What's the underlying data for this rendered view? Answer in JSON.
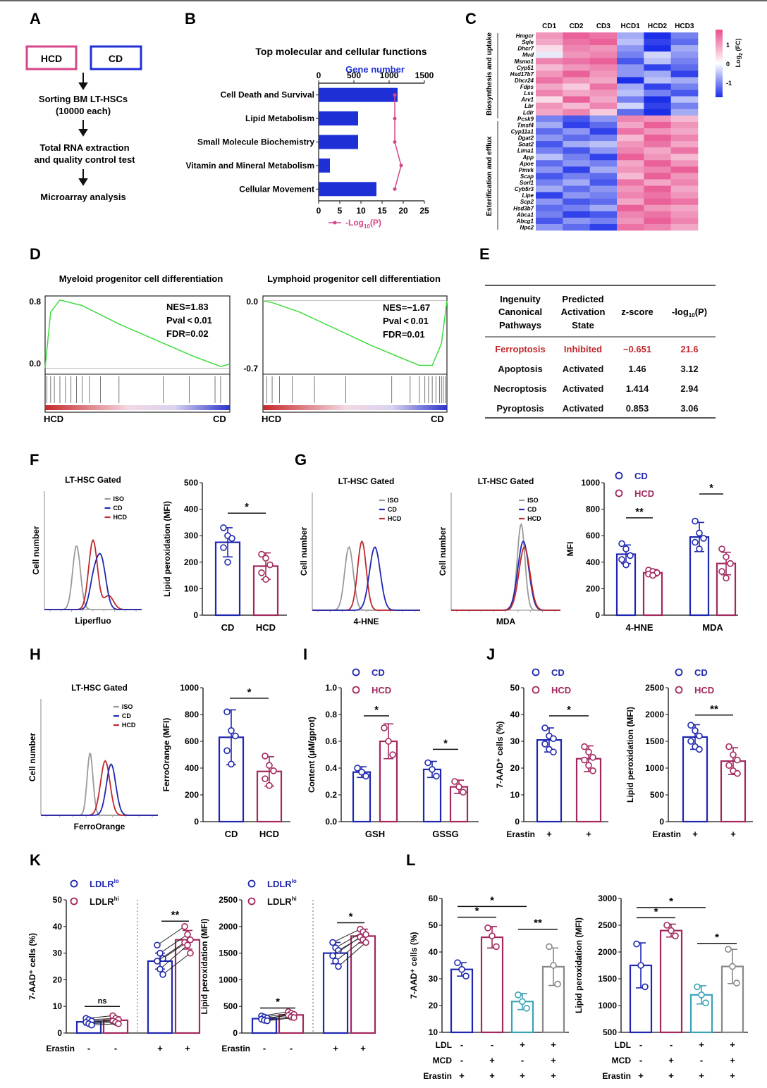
{
  "colors": {
    "cd": "#1f27b0",
    "hcd": "#a3285e",
    "iso": "#9a9a9a",
    "bar_blue": "#1f2fd6",
    "pink": "#d6458a",
    "gsea": "#3edb3e",
    "ferroptosis_red": "#c0282d",
    "teal": "#3aa3b7",
    "gray_bar": "#888888"
  },
  "panelA": {
    "letter": "A",
    "box_hcd": "HCD",
    "box_cd": "CD",
    "step1_line1": "Sorting BM LT-HSCs",
    "step1_line2": "(10000 each)",
    "step2_line1": "Total RNA extraction",
    "step2_line2": "and quality control test",
    "step3": "Microarray analysis"
  },
  "panelB": {
    "letter": "B",
    "title": "Top molecular and cellular functions",
    "top_axis_label": "Gene number",
    "legend_label": "-Log",
    "legend_sub": "10",
    "legend_tail": "(P)"
  },
  "panelC": {
    "letter": "C",
    "colorbar_label": "Log",
    "colorbar_sub": "2",
    "colorbar_tail": " (FC)",
    "colorbar_ticks": [
      "1",
      "0",
      "-1"
    ],
    "group1": "Biosynthesis and uptake",
    "group2": "Esterification and efflux"
  },
  "panelD": {
    "letter": "D",
    "left": {
      "title": "Myeloid progenitor cell differentiation",
      "nes": "NES=1.83",
      "pval": "Pval < 0.01",
      "fdr": "FDR=0.02",
      "y_top": "0.8",
      "y_zero": "0.0",
      "x_left": "HCD",
      "x_right": "CD"
    },
    "right": {
      "title": "Lymphoid progenitor cell differentiation",
      "nes": "NES=−1.67",
      "pval": "Pval < 0.01",
      "fdr": "FDR=0.01",
      "y_top": "0.0",
      "y_bottom": "-0.7",
      "x_left": "HCD",
      "x_right": "CD"
    }
  },
  "panelE": {
    "letter": "E",
    "headers": [
      [
        "Ingenuity",
        "Canonical",
        "Pathways"
      ],
      [
        "Predicted",
        "Activation",
        "State"
      ],
      [
        "z-score"
      ],
      [
        "-log",
        "10",
        "(P)"
      ]
    ],
    "rows": [
      {
        "pathway": "Ferroptosis",
        "state": "Inhibited",
        "z": "−0.651",
        "p": "21.6",
        "highlight": true
      },
      {
        "pathway": "Apoptosis",
        "state": "Activated",
        "z": "1.46",
        "p": "3.12",
        "highlight": false
      },
      {
        "pathway": "Necroptosis",
        "state": "Activated",
        "z": "1.414",
        "p": "2.94",
        "highlight": false
      },
      {
        "pathway": "Pyroptosis",
        "state": "Activated",
        "z": "0.853",
        "p": "3.06",
        "highlight": false
      }
    ]
  },
  "flow": {
    "lt_gated": "LT-HSC Gated",
    "cell_number": "Cell number",
    "legend": [
      "ISO",
      "CD",
      "HCD"
    ]
  },
  "panelF": {
    "letter": "F",
    "x_hist": "Liperfluo",
    "ylabel": "Lipid peroxidation (MFI)"
  },
  "panelG": {
    "letter": "G",
    "x_hist1": "4-HNE",
    "x_hist2": "MDA",
    "ylabel": "MFI"
  },
  "panelH": {
    "letter": "H",
    "x_hist": "FerroOrange",
    "ylabel": "FerroOrange (MFI)"
  },
  "panelI": {
    "letter": "I",
    "ylabel": "Content (μM/gprot)"
  },
  "panelJ": {
    "letter": "J",
    "ylabel1": "7-AAD⁺ cells (%)",
    "ylabel2": "Lipid peroxidation (MFI)"
  },
  "panelK": {
    "letter": "K",
    "ylabel1": "7-AAD⁺ cells (%)",
    "ylabel2": "Lipid peroxidation (MFI)"
  },
  "panelL": {
    "letter": "L",
    "ylabel1": "7-AAD⁺ cells (%)",
    "ylabel2": "Lipid peroxidation (MFI)"
  },
  "legend_labels": {
    "cd": "CD",
    "hcd": "HCD",
    "ldlr_lo": "LDLR",
    "lo_sup": "lo",
    "ldlr_hi": "LDLR",
    "hi_sup": "hi"
  },
  "cond_labels": {
    "erastin": "Erastin",
    "ldl": "LDL",
    "mcd": "MCD",
    "plus": "+",
    "minus": "-"
  },
  "chart_data": [
    {
      "type": "bar",
      "panel": "B",
      "title": "Top molecular and cellular functions",
      "categories": [
        "Cell Death and Survival",
        "Lipid Metabolism",
        "Small Molecule Biochemistry",
        "Vitamin and Mineral Metabolism",
        "Cellular Movement"
      ],
      "series": [
        {
          "name": "Gene number",
          "values": [
            1120,
            560,
            560,
            160,
            820
          ]
        },
        {
          "name": "-Log10(P)",
          "values": [
            18,
            18,
            18,
            19.5,
            18
          ]
        }
      ],
      "top_axis": {
        "ticks": [
          0,
          500,
          1000,
          1500
        ],
        "lim": [
          0,
          1500
        ]
      },
      "bottom_axis": {
        "ticks": [
          0,
          5,
          10,
          15,
          20,
          25
        ],
        "lim": [
          0,
          25
        ]
      }
    },
    {
      "type": "heatmap",
      "panel": "C",
      "columns": [
        "CD1",
        "CD2",
        "CD3",
        "HCD1",
        "HCD2",
        "HCD3"
      ],
      "rows": [
        "Hmgcr",
        "Sqle",
        "Dhcr7",
        "Mvd",
        "Msmo1",
        "Cyp51",
        "Hsd17b7",
        "Dhcr24",
        "Fdps",
        "Lss",
        "Arv1",
        "Lbr",
        "Ldlr",
        "Pcsk9",
        "Tmsf4",
        "Cyp11a1",
        "Dgat2",
        "Soat2",
        "Lima1",
        "App",
        "Apoe",
        "Pmvk",
        "Scap",
        "Sorl1",
        "Cyb5r3",
        "Lipe",
        "Scp2",
        "Hsd3b7",
        "Abca1",
        "Abcg1",
        "Npc2"
      ],
      "values": [
        [
          0.6,
          0.9,
          0.8,
          -0.4,
          -1.0,
          -0.6
        ],
        [
          0.5,
          0.8,
          0.9,
          -0.3,
          -0.9,
          -0.7
        ],
        [
          0.2,
          0.7,
          0.6,
          -0.5,
          -1.0,
          -0.4
        ],
        [
          -0.1,
          0.6,
          0.7,
          -0.6,
          -0.2,
          -0.5
        ],
        [
          0.7,
          0.8,
          0.9,
          -0.8,
          -0.3,
          -0.6
        ],
        [
          0.4,
          0.6,
          0.7,
          -0.5,
          -0.9,
          -0.7
        ],
        [
          0.6,
          0.9,
          0.6,
          -0.5,
          -0.4,
          -0.9
        ],
        [
          0.8,
          0.6,
          0.5,
          -1.0,
          -0.3,
          -0.4
        ],
        [
          0.5,
          0.3,
          0.8,
          -0.4,
          -0.9,
          -0.6
        ],
        [
          0.7,
          0.5,
          0.6,
          -0.3,
          -0.6,
          -0.8
        ],
        [
          0.2,
          0.9,
          0.5,
          -0.6,
          -1.0,
          -0.3
        ],
        [
          0.6,
          0.4,
          0.7,
          -0.2,
          -0.9,
          -0.6
        ],
        [
          0.5,
          0.7,
          0.3,
          -0.7,
          -1.0,
          -0.4
        ],
        [
          -0.6,
          -0.8,
          -0.5,
          0.7,
          0.6,
          0.4
        ],
        [
          -0.4,
          -0.9,
          -0.7,
          0.5,
          0.9,
          0.6
        ],
        [
          -0.7,
          -0.5,
          -0.9,
          0.8,
          0.6,
          0.5
        ],
        [
          -0.5,
          -0.7,
          -0.6,
          0.4,
          0.9,
          0.7
        ],
        [
          -0.8,
          -0.4,
          -0.3,
          0.6,
          0.8,
          0.5
        ],
        [
          -0.6,
          -0.8,
          -0.5,
          0.7,
          0.5,
          0.8
        ],
        [
          -0.3,
          -0.6,
          -0.9,
          0.9,
          0.6,
          0.4
        ],
        [
          -0.7,
          -0.5,
          -0.6,
          0.5,
          0.9,
          0.6
        ],
        [
          -0.5,
          -0.9,
          -0.4,
          0.6,
          0.7,
          0.9
        ],
        [
          -0.8,
          -0.6,
          -0.7,
          0.4,
          0.9,
          0.6
        ],
        [
          -0.6,
          -0.4,
          -0.8,
          0.8,
          0.5,
          0.7
        ],
        [
          -0.4,
          -0.7,
          -0.5,
          0.6,
          0.9,
          0.5
        ],
        [
          -0.9,
          -0.5,
          -0.6,
          0.7,
          0.8,
          0.6
        ],
        [
          -0.5,
          -0.8,
          -0.7,
          0.5,
          0.9,
          0.8
        ],
        [
          -0.7,
          -0.6,
          -0.4,
          0.9,
          0.6,
          0.5
        ],
        [
          -0.6,
          -0.9,
          -0.8,
          0.7,
          0.8,
          0.6
        ],
        [
          -0.8,
          -0.5,
          -0.6,
          0.6,
          0.9,
          0.7
        ],
        [
          -0.5,
          -0.7,
          -0.9,
          0.8,
          0.7,
          0.5
        ]
      ],
      "range": [
        -1,
        1
      ]
    },
    {
      "type": "line",
      "panel": "D-left",
      "title": "Myeloid progenitor cell differentiation",
      "x": [
        0,
        3,
        8,
        20,
        40,
        60,
        80,
        95,
        100
      ],
      "y": [
        0.0,
        0.7,
        0.85,
        0.78,
        0.55,
        0.35,
        0.15,
        0.02,
        0.05
      ],
      "ylim": [
        -0.05,
        0.9
      ]
    },
    {
      "type": "line",
      "panel": "D-right",
      "title": "Lymphoid progenitor cell differentiation",
      "x": [
        0,
        5,
        20,
        40,
        60,
        75,
        85,
        92,
        97,
        100
      ],
      "y": [
        0.0,
        -0.02,
        -0.12,
        -0.3,
        -0.48,
        -0.6,
        -0.68,
        -0.68,
        -0.45,
        0.0
      ],
      "ylim": [
        -0.75,
        0.05
      ]
    },
    {
      "type": "bar",
      "panel": "F",
      "categories": [
        "CD",
        "HCD"
      ],
      "values": [
        275,
        185
      ],
      "errors": [
        55,
        50
      ],
      "points": [
        [
          330,
          300,
          290,
          255,
          200
        ],
        [
          230,
          215,
          190,
          160,
          135
        ]
      ],
      "ylim": [
        0,
        500
      ],
      "yticks": [
        0,
        100,
        200,
        300,
        400,
        500
      ],
      "ylabel": "Lipid peroxidation (MFI)",
      "sig": [
        {
          "from": 0,
          "to": 1,
          "label": "*"
        }
      ]
    },
    {
      "type": "bar",
      "panel": "G",
      "groups": [
        "4-HNE",
        "MDA"
      ],
      "series": [
        {
          "name": "CD",
          "values": [
            460,
            590
          ],
          "errors": [
            70,
            110
          ],
          "points": [
            [
              540,
              500,
              450,
              420,
              380
            ],
            [
              710,
              620,
              580,
              550,
              500
            ]
          ]
        },
        {
          "name": "HCD",
          "values": [
            320,
            390
          ],
          "errors": [
            25,
            85
          ],
          "points": [
            [
              340,
              330,
              320,
              310,
              300
            ],
            [
              500,
              440,
              390,
              330,
              280
            ]
          ]
        }
      ],
      "ylim": [
        0,
        1000
      ],
      "yticks": [
        0,
        200,
        400,
        600,
        800,
        1000
      ],
      "ylabel": "MFI",
      "sig": [
        "**",
        "*"
      ]
    },
    {
      "type": "bar",
      "panel": "H",
      "categories": [
        "CD",
        "HCD"
      ],
      "values": [
        630,
        375
      ],
      "errors": [
        205,
        110
      ],
      "points": [
        [
          820,
          680,
          640,
          530,
          430
        ],
        [
          490,
          420,
          380,
          320,
          270
        ]
      ],
      "ylim": [
        0,
        1000
      ],
      "yticks": [
        0,
        200,
        400,
        600,
        800,
        1000
      ],
      "ylabel": "FerroOrange (MFI)",
      "sig": [
        {
          "from": 0,
          "to": 1,
          "label": "*"
        }
      ]
    },
    {
      "type": "bar",
      "panel": "I",
      "groups": [
        "GSH",
        "GSSG"
      ],
      "series": [
        {
          "name": "CD",
          "values": [
            0.37,
            0.39
          ],
          "errors": [
            0.04,
            0.06
          ],
          "points": [
            [
              0.4,
              0.37,
              0.34
            ],
            [
              0.44,
              0.39,
              0.34
            ]
          ]
        },
        {
          "name": "HCD",
          "values": [
            0.6,
            0.26
          ],
          "errors": [
            0.13,
            0.05
          ],
          "points": [
            [
              0.7,
              0.6,
              0.5
            ],
            [
              0.3,
              0.26,
              0.22
            ]
          ]
        }
      ],
      "ylim": [
        0,
        1.0
      ],
      "yticks": [
        0.0,
        0.2,
        0.4,
        0.6,
        0.8,
        1.0
      ],
      "ylabel": "Content (μM/gprot)",
      "sig": [
        "*",
        "*"
      ]
    },
    {
      "type": "bar",
      "panel": "J-left",
      "categories": [
        "CD",
        "HCD"
      ],
      "values": [
        30.5,
        23.5
      ],
      "errors": [
        4.5,
        4.8
      ],
      "points": [
        [
          35,
          32,
          31,
          29,
          27,
          26
        ],
        [
          28,
          26,
          24,
          23,
          21,
          19
        ]
      ],
      "ylim": [
        0,
        50
      ],
      "yticks": [
        0,
        10,
        20,
        30,
        40,
        50
      ],
      "ylabel": "7-AAD⁺ cells (%)",
      "sig": [
        {
          "from": 0,
          "to": 1,
          "label": "*"
        }
      ]
    },
    {
      "type": "bar",
      "panel": "J-right",
      "categories": [
        "CD",
        "HCD"
      ],
      "values": [
        1580,
        1130
      ],
      "errors": [
        230,
        250
      ],
      "points": [
        [
          1800,
          1700,
          1600,
          1500,
          1400,
          1350
        ],
        [
          1400,
          1250,
          1150,
          1050,
          950,
          900
        ]
      ],
      "ylim": [
        0,
        2500
      ],
      "yticks": [
        0,
        500,
        1000,
        1500,
        2000,
        2500
      ],
      "ylabel": "Lipid peroxidation (MFI)",
      "sig": [
        {
          "from": 0,
          "to": 1,
          "label": "**"
        }
      ]
    },
    {
      "type": "bar",
      "panel": "K-left",
      "categories": [
        "LDLRlo",
        "LDLRhi",
        "LDLRlo",
        "LDLRhi"
      ],
      "values": [
        4.2,
        4.8,
        27,
        35
      ],
      "errors": [
        1.2,
        1.3,
        3.0,
        3.5
      ],
      "points": [
        [
          5.5,
          5,
          4.5,
          4,
          3.5,
          3
        ],
        [
          6.5,
          5.5,
          5,
          4.5,
          4,
          3.5
        ],
        [
          33,
          30,
          28,
          27,
          24,
          22
        ],
        [
          40,
          37,
          35,
          34,
          33,
          30
        ]
      ],
      "ylim": [
        0,
        50
      ],
      "yticks": [
        0,
        10,
        20,
        30,
        40,
        50
      ],
      "ylabel": "7-AAD⁺ cells (%)",
      "sig": [
        "ns",
        "**"
      ]
    },
    {
      "type": "bar",
      "panel": "K-right",
      "categories": [
        "LDLRlo",
        "LDLRhi",
        "LDLRlo",
        "LDLRhi"
      ],
      "values": [
        270,
        340,
        1500,
        1820
      ],
      "errors": [
        40,
        50,
        200,
        130
      ],
      "points": [
        [
          320,
          300,
          280,
          260,
          240,
          230
        ],
        [
          400,
          370,
          350,
          330,
          300,
          290
        ],
        [
          1700,
          1600,
          1550,
          1450,
          1350,
          1250
        ],
        [
          1950,
          1900,
          1850,
          1800,
          1750,
          1700
        ]
      ],
      "ylim": [
        0,
        2500
      ],
      "yticks": [
        0,
        500,
        1000,
        1500,
        2000,
        2500
      ],
      "ylabel": "Lipid peroxidation (MFI)",
      "sig": [
        "*",
        "*"
      ]
    },
    {
      "type": "bar",
      "panel": "L-left",
      "categories": [
        "-/-/+",
        "-/+/+",
        "+/-/+",
        "+/+/+"
      ],
      "values": [
        33.5,
        45.5,
        21.5,
        34.5
      ],
      "errors": [
        2.5,
        4,
        3,
        7
      ],
      "points": [
        [
          36,
          33.5,
          31
        ],
        [
          49,
          46,
          42
        ],
        [
          24,
          21.5,
          19
        ],
        [
          42,
          35,
          28
        ]
      ],
      "ylim": [
        10,
        60
      ],
      "yticks": [
        10,
        20,
        30,
        40,
        50,
        60
      ],
      "ylabel": "7-AAD⁺ cells (%)",
      "sig": [
        "*",
        "*",
        "**"
      ]
    },
    {
      "type": "bar",
      "panel": "L-right",
      "categories": [
        "-/-/+",
        "-/+/+",
        "+/-/+",
        "+/+/+"
      ],
      "values": [
        1750,
        2400,
        1200,
        1730
      ],
      "errors": [
        420,
        120,
        170,
        320
      ],
      "points": [
        [
          2150,
          1750,
          1350
        ],
        [
          2500,
          2400,
          2300
        ],
        [
          1350,
          1200,
          1050
        ],
        [
          2050,
          1730,
          1420
        ]
      ],
      "ylim": [
        500,
        3000
      ],
      "yticks": [
        500,
        1000,
        1500,
        2000,
        2500,
        3000
      ],
      "ylabel": "Lipid peroxidation (MFI)",
      "sig": [
        "*",
        "*",
        "*"
      ]
    }
  ]
}
